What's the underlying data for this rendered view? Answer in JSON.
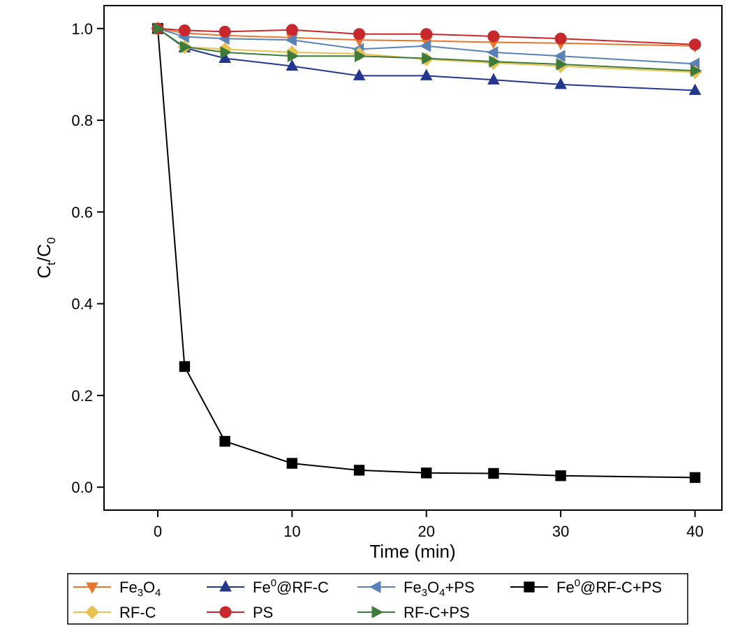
{
  "chart_data": {
    "type": "line",
    "title": "",
    "xlabel": "Time (min)",
    "ylabel": {
      "main": "C",
      "sub1": "t",
      "mid": "/C",
      "sub2": "0"
    },
    "xlim": [
      -4,
      42
    ],
    "ylim": [
      -0.05,
      1.05
    ],
    "xticks": [
      0,
      10,
      20,
      30,
      40
    ],
    "yticks": [
      0.0,
      0.2,
      0.4,
      0.6,
      0.8,
      1.0
    ],
    "ytick_labels": [
      "0.0",
      "0.2",
      "0.4",
      "0.6",
      "0.8",
      "1.0"
    ],
    "x": [
      0,
      2,
      5,
      10,
      15,
      20,
      25,
      30,
      40
    ],
    "legend_position": "bottom",
    "series": [
      {
        "id": "fe3o4",
        "parts": [
          {
            "t": "Fe",
            "s": false
          },
          {
            "t": "3",
            "s": true
          },
          {
            "t": "O",
            "s": false
          },
          {
            "t": "4",
            "s": true
          }
        ],
        "color": "#e8772e",
        "marker": "triangle-down",
        "values": [
          1.0,
          0.99,
          0.985,
          0.98,
          0.975,
          0.973,
          0.97,
          0.968,
          0.962
        ]
      },
      {
        "id": "fe0rfc",
        "parts": [
          {
            "t": "Fe",
            "s": false
          },
          {
            "t": "0",
            "s": "sup"
          },
          {
            "t": "@RF-C",
            "s": false
          }
        ],
        "color": "#23378f",
        "marker": "triangle-up",
        "values": [
          1.0,
          0.958,
          0.935,
          0.918,
          0.897,
          0.897,
          0.888,
          0.878,
          0.865
        ]
      },
      {
        "id": "fe3o4ps",
        "parts": [
          {
            "t": "Fe",
            "s": false
          },
          {
            "t": "3",
            "s": true
          },
          {
            "t": "O",
            "s": false
          },
          {
            "t": "4",
            "s": true
          },
          {
            "t": "+PS",
            "s": false
          }
        ],
        "color": "#5b82b8",
        "marker": "triangle-left",
        "values": [
          1.0,
          0.982,
          0.978,
          0.975,
          0.955,
          0.962,
          0.948,
          0.94,
          0.923
        ]
      },
      {
        "id": "fe0rfcps",
        "parts": [
          {
            "t": "Fe",
            "s": false
          },
          {
            "t": "0",
            "s": "sup"
          },
          {
            "t": "@RF-C+PS",
            "s": false
          }
        ],
        "color": "#000000",
        "marker": "square",
        "values": [
          1.0,
          0.263,
          0.1,
          0.052,
          0.037,
          0.031,
          0.03,
          0.025,
          0.021
        ]
      },
      {
        "id": "rfc",
        "parts": [
          {
            "t": "RF-C",
            "s": false
          }
        ],
        "color": "#e8c14e",
        "marker": "diamond",
        "values": [
          1.0,
          0.96,
          0.955,
          0.948,
          0.945,
          0.933,
          0.925,
          0.918,
          0.905
        ]
      },
      {
        "id": "ps",
        "parts": [
          {
            "t": "PS",
            "s": false
          }
        ],
        "color": "#c8282c",
        "marker": "circle",
        "values": [
          1.0,
          0.996,
          0.993,
          0.997,
          0.988,
          0.988,
          0.983,
          0.978,
          0.965
        ]
      },
      {
        "id": "rfcps",
        "parts": [
          {
            "t": "RF-C+PS",
            "s": false
          }
        ],
        "color": "#3e7a3a",
        "marker": "triangle-right",
        "values": [
          1.0,
          0.96,
          0.948,
          0.94,
          0.94,
          0.935,
          0.928,
          0.922,
          0.908
        ]
      }
    ]
  }
}
